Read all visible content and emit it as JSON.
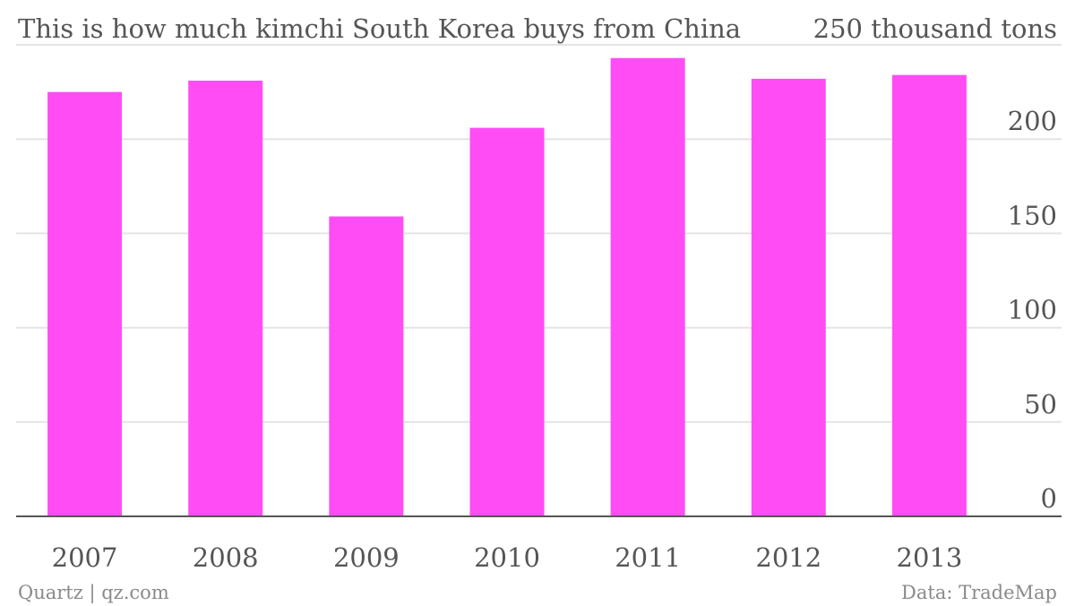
{
  "header": {
    "title": "This is how much kimchi South Korea buys from China",
    "top_tick_label": "250 thousand tons"
  },
  "footer": {
    "credit": "Quartz | qz.com",
    "source": "Data: TradeMap"
  },
  "colors": {
    "bar": "#ff4cf5",
    "grid": "#e4e4e4",
    "baseline": "#555555",
    "text": "#555555",
    "footer_text": "#8a8a8a"
  },
  "chart_data": {
    "type": "bar",
    "categories": [
      "2007",
      "2008",
      "2009",
      "2010",
      "2011",
      "2012",
      "2013"
    ],
    "values": [
      225,
      231,
      159,
      206,
      243,
      232,
      234
    ],
    "ylim": [
      0,
      250
    ],
    "yticks": [
      0,
      50,
      100,
      150,
      200,
      250
    ],
    "ytick_labels": [
      "0",
      "50",
      "100",
      "150",
      "200",
      "250 thousand tons"
    ],
    "grid": true,
    "legend": "none"
  }
}
